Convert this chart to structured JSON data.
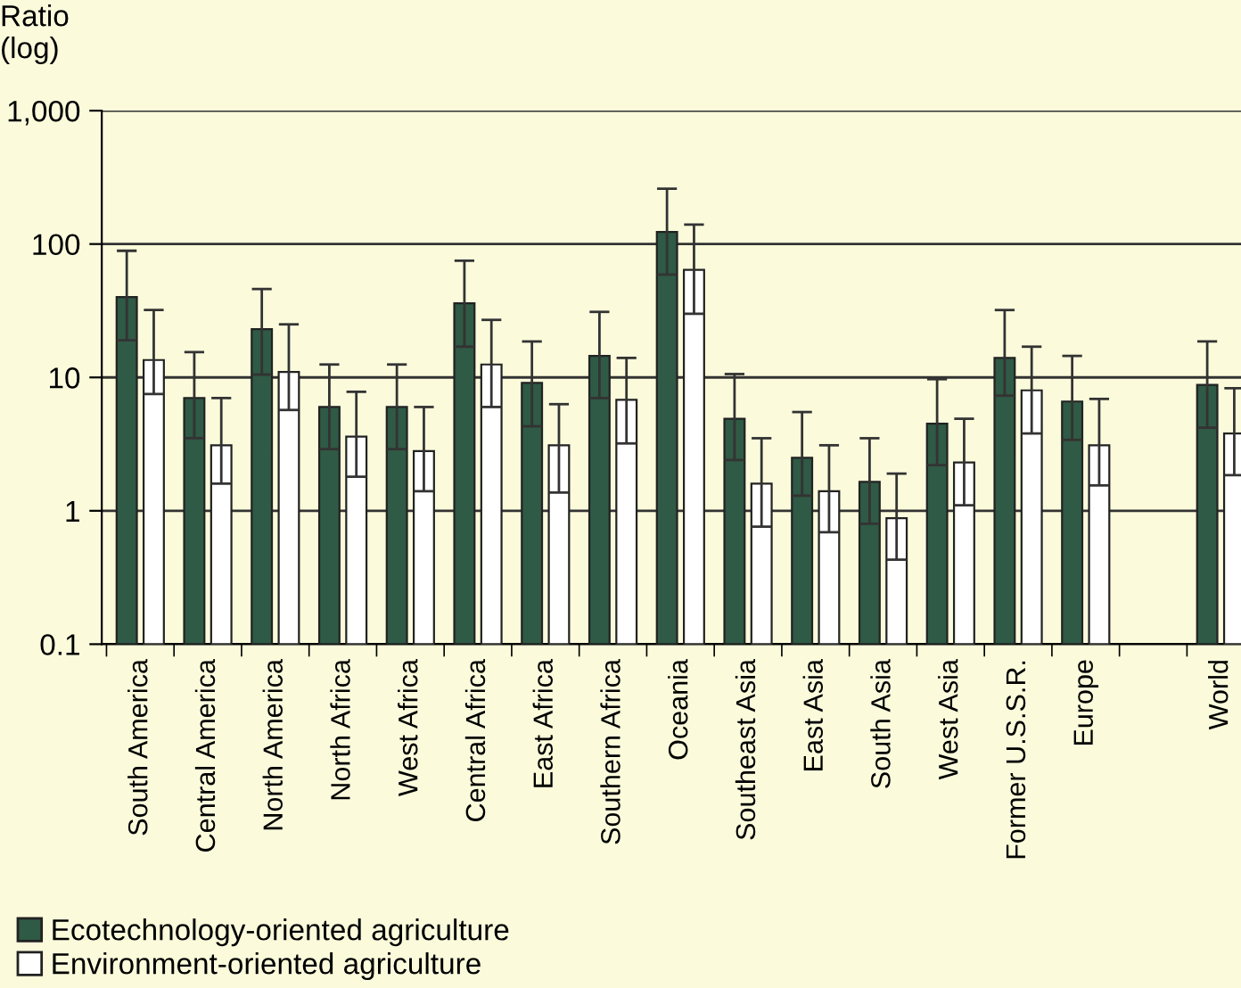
{
  "chart_data": {
    "type": "bar",
    "ylabel": "Ratio\n(log)",
    "categories": [
      "South America",
      "Central America",
      "North America",
      "North Africa",
      "West Africa",
      "Central Africa",
      "East Africa",
      "Southern Africa",
      "Oceania",
      "Southeast Asia",
      "East Asia",
      "South Asia",
      "West Asia",
      "Former U.S.S.R.",
      "Europe",
      null,
      "World"
    ],
    "series": [
      {
        "name": "Ecotechnology-oriented agriculture",
        "color": "#2f5a45",
        "values": [
          40,
          7,
          23,
          6,
          6,
          36,
          9.1,
          14.5,
          123,
          4.9,
          2.5,
          1.65,
          4.5,
          14,
          6.6,
          null,
          8.8
        ],
        "errors": [
          [
            19,
            89
          ],
          [
            3.5,
            15.5
          ],
          [
            10.5,
            46
          ],
          [
            2.9,
            12.5
          ],
          [
            2.9,
            12.5
          ],
          [
            17,
            75
          ],
          [
            4.3,
            18.6
          ],
          [
            7,
            31
          ],
          [
            59,
            260
          ],
          [
            2.4,
            10.6
          ],
          [
            1.3,
            5.5
          ],
          [
            0.8,
            3.5
          ],
          [
            2.2,
            9.7
          ],
          [
            7.3,
            32
          ],
          [
            3.4,
            14.5
          ],
          null,
          [
            4.2,
            18.6
          ]
        ]
      },
      {
        "name": "Environment-oriented agriculture",
        "color": "#ffffff",
        "values": [
          13.5,
          3.1,
          11,
          3.6,
          2.8,
          12.5,
          3.1,
          6.8,
          64,
          1.6,
          1.4,
          0.88,
          2.3,
          8,
          3.1,
          null,
          3.8
        ],
        "errors": [
          [
            7.5,
            32
          ],
          [
            1.6,
            7
          ],
          [
            5.7,
            25
          ],
          [
            1.8,
            7.8
          ],
          [
            1.4,
            6
          ],
          [
            6,
            27
          ],
          [
            1.37,
            6.3
          ],
          [
            3.2,
            14
          ],
          [
            30,
            140
          ],
          [
            0.76,
            3.5
          ],
          [
            0.69,
            3.1
          ],
          [
            0.43,
            1.9
          ],
          [
            1.1,
            4.9
          ],
          [
            3.8,
            17
          ],
          [
            1.55,
            6.9
          ],
          null,
          [
            1.85,
            8.3
          ]
        ]
      }
    ],
    "log": true,
    "ylim": [
      0.1,
      1000
    ],
    "yticks": [
      0.1,
      1,
      10,
      100,
      {
        "value": 1000,
        "label": "1,000"
      }
    ],
    "grid": "y",
    "legend": "bottom"
  }
}
